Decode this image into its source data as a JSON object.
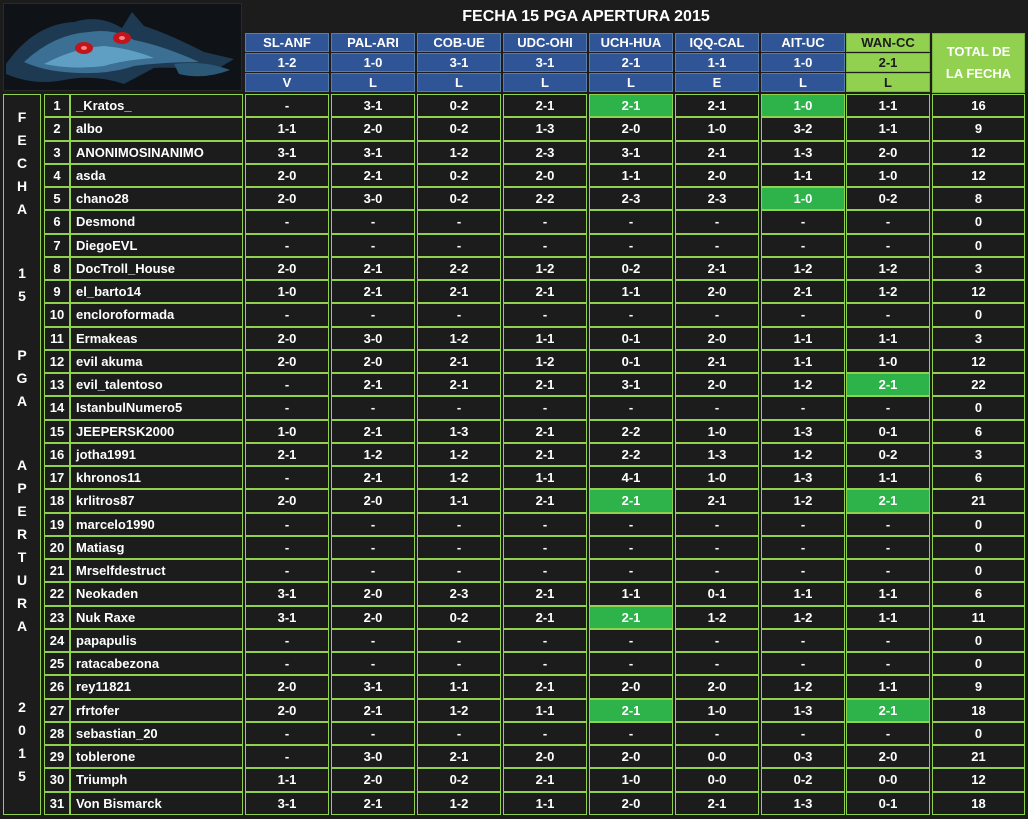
{
  "title": "FECHA 15 PGA APERTURA 2015",
  "total_header": "TOTAL DE LA FECHA",
  "side_label": [
    "F",
    "E",
    "C",
    "H",
    "A",
    "1",
    "5",
    "P",
    "G",
    "A",
    "A",
    "P",
    "E",
    "R",
    "T",
    "U",
    "R",
    "A",
    "2",
    "0",
    "1",
    "5"
  ],
  "colors": {
    "background": "#1c1c1c",
    "grid": "#92d050",
    "header_blue": "#2f5597",
    "header_green": "#92d050",
    "hit": "#2eb24a",
    "text": "#ffffff"
  },
  "matches": [
    {
      "teams": "SL-ANF",
      "score": "1-2",
      "result": "V",
      "highlight": false
    },
    {
      "teams": "PAL-ARI",
      "score": "1-0",
      "result": "L",
      "highlight": false
    },
    {
      "teams": "COB-UE",
      "score": "3-1",
      "result": "L",
      "highlight": false
    },
    {
      "teams": "UDC-OHI",
      "score": "3-1",
      "result": "L",
      "highlight": false
    },
    {
      "teams": "UCH-HUA",
      "score": "2-1",
      "result": "L",
      "highlight": false
    },
    {
      "teams": "IQQ-CAL",
      "score": "1-1",
      "result": "E",
      "highlight": false
    },
    {
      "teams": "AIT-UC",
      "score": "1-0",
      "result": "L",
      "highlight": false
    },
    {
      "teams": "WAN-CC",
      "score": "2-1",
      "result": "L",
      "highlight": true
    }
  ],
  "rows": [
    {
      "num": "1",
      "name": "_Kratos_",
      "picks": [
        "-",
        "3-1",
        "0-2",
        "2-1",
        "2-1",
        "2-1",
        "1-0",
        "1-1"
      ],
      "hits": [
        4,
        6
      ],
      "total": "16"
    },
    {
      "num": "2",
      "name": "albo",
      "picks": [
        "1-1",
        "2-0",
        "0-2",
        "1-3",
        "2-0",
        "1-0",
        "3-2",
        "1-1"
      ],
      "hits": [],
      "total": "9"
    },
    {
      "num": "3",
      "name": "ANONIMOSINANIMO",
      "picks": [
        "3-1",
        "3-1",
        "1-2",
        "2-3",
        "3-1",
        "2-1",
        "1-3",
        "2-0"
      ],
      "hits": [],
      "total": "12"
    },
    {
      "num": "4",
      "name": "asda",
      "picks": [
        "2-0",
        "2-1",
        "0-2",
        "2-0",
        "1-1",
        "2-0",
        "1-1",
        "1-0"
      ],
      "hits": [],
      "total": "12"
    },
    {
      "num": "5",
      "name": "chano28",
      "picks": [
        "2-0",
        "3-0",
        "0-2",
        "2-2",
        "2-3",
        "2-3",
        "1-0",
        "0-2"
      ],
      "hits": [
        6
      ],
      "total": "8"
    },
    {
      "num": "6",
      "name": "Desmond",
      "picks": [
        "-",
        "-",
        "-",
        "-",
        "-",
        "-",
        "-",
        "-"
      ],
      "hits": [],
      "total": "0"
    },
    {
      "num": "7",
      "name": "DiegoEVL",
      "picks": [
        "-",
        "-",
        "-",
        "-",
        "-",
        "-",
        "-",
        "-"
      ],
      "hits": [],
      "total": "0"
    },
    {
      "num": "8",
      "name": "DocTroll_House",
      "picks": [
        "2-0",
        "2-1",
        "2-2",
        "1-2",
        "0-2",
        "2-1",
        "1-2",
        "1-2"
      ],
      "hits": [],
      "total": "3"
    },
    {
      "num": "9",
      "name": "el_barto14",
      "picks": [
        "1-0",
        "2-1",
        "2-1",
        "2-1",
        "1-1",
        "2-0",
        "2-1",
        "1-2"
      ],
      "hits": [],
      "total": "12"
    },
    {
      "num": "10",
      "name": "encloroformada",
      "picks": [
        "-",
        "-",
        "-",
        "-",
        "-",
        "-",
        "-",
        "-"
      ],
      "hits": [],
      "total": "0"
    },
    {
      "num": "11",
      "name": "Ermakeas",
      "picks": [
        "2-0",
        "3-0",
        "1-2",
        "1-1",
        "0-1",
        "2-0",
        "1-1",
        "1-1"
      ],
      "hits": [],
      "total": "3"
    },
    {
      "num": "12",
      "name": "evil akuma",
      "picks": [
        "2-0",
        "2-0",
        "2-1",
        "1-2",
        "0-1",
        "2-1",
        "1-1",
        "1-0"
      ],
      "hits": [],
      "total": "12"
    },
    {
      "num": "13",
      "name": "evil_talentoso",
      "picks": [
        "-",
        "2-1",
        "2-1",
        "2-1",
        "3-1",
        "2-0",
        "1-2",
        "2-1"
      ],
      "hits": [
        7
      ],
      "total": "22"
    },
    {
      "num": "14",
      "name": "IstanbulNumero5",
      "picks": [
        "-",
        "-",
        "-",
        "-",
        "-",
        "-",
        "-",
        "-"
      ],
      "hits": [],
      "total": "0"
    },
    {
      "num": "15",
      "name": "JEEPERSK2000",
      "picks": [
        "1-0",
        "2-1",
        "1-3",
        "2-1",
        "2-2",
        "1-0",
        "1-3",
        "0-1"
      ],
      "hits": [],
      "total": "6"
    },
    {
      "num": "16",
      "name": "jotha1991",
      "picks": [
        "2-1",
        "1-2",
        "1-2",
        "2-1",
        "2-2",
        "1-3",
        "1-2",
        "0-2"
      ],
      "hits": [],
      "total": "3"
    },
    {
      "num": "17",
      "name": "khronos11",
      "picks": [
        "-",
        "2-1",
        "1-2",
        "1-1",
        "4-1",
        "1-0",
        "1-3",
        "1-1"
      ],
      "hits": [],
      "total": "6"
    },
    {
      "num": "18",
      "name": "krlitros87",
      "picks": [
        "2-0",
        "2-0",
        "1-1",
        "2-1",
        "2-1",
        "2-1",
        "1-2",
        "2-1"
      ],
      "hits": [
        4,
        7
      ],
      "total": "21"
    },
    {
      "num": "19",
      "name": "marcelo1990",
      "picks": [
        "-",
        "-",
        "-",
        "-",
        "-",
        "-",
        "-",
        "-"
      ],
      "hits": [],
      "total": "0"
    },
    {
      "num": "20",
      "name": "Matiasg",
      "picks": [
        "-",
        "-",
        "-",
        "-",
        "-",
        "-",
        "-",
        "-"
      ],
      "hits": [],
      "total": "0"
    },
    {
      "num": "21",
      "name": "Mrselfdestruct",
      "picks": [
        "-",
        "-",
        "-",
        "-",
        "-",
        "-",
        "-",
        "-"
      ],
      "hits": [],
      "total": "0"
    },
    {
      "num": "22",
      "name": "Neokaden",
      "picks": [
        "3-1",
        "2-0",
        "2-3",
        "2-1",
        "1-1",
        "0-1",
        "1-1",
        "1-1"
      ],
      "hits": [],
      "total": "6"
    },
    {
      "num": "23",
      "name": "Nuk Raxe",
      "picks": [
        "3-1",
        "2-0",
        "0-2",
        "2-1",
        "2-1",
        "1-2",
        "1-2",
        "1-1"
      ],
      "hits": [
        4
      ],
      "total": "11"
    },
    {
      "num": "24",
      "name": "papapulis",
      "picks": [
        "-",
        "-",
        "-",
        "-",
        "-",
        "-",
        "-",
        "-"
      ],
      "hits": [],
      "total": "0"
    },
    {
      "num": "25",
      "name": "ratacabezona",
      "picks": [
        "-",
        "-",
        "-",
        "-",
        "-",
        "-",
        "-",
        "-"
      ],
      "hits": [],
      "total": "0"
    },
    {
      "num": "26",
      "name": "rey11821",
      "picks": [
        "2-0",
        "3-1",
        "1-1",
        "2-1",
        "2-0",
        "2-0",
        "1-2",
        "1-1"
      ],
      "hits": [],
      "total": "9"
    },
    {
      "num": "27",
      "name": "rfrtofer",
      "picks": [
        "2-0",
        "2-1",
        "1-2",
        "1-1",
        "2-1",
        "1-0",
        "1-3",
        "2-1"
      ],
      "hits": [
        4,
        7
      ],
      "total": "18"
    },
    {
      "num": "28",
      "name": "sebastian_20",
      "picks": [
        "-",
        "-",
        "-",
        "-",
        "-",
        "-",
        "-",
        "-"
      ],
      "hits": [],
      "total": "0"
    },
    {
      "num": "29",
      "name": "toblerone",
      "picks": [
        "-",
        "3-0",
        "2-1",
        "2-0",
        "2-0",
        "0-0",
        "0-3",
        "2-0"
      ],
      "hits": [],
      "total": "21"
    },
    {
      "num": "30",
      "name": "Triumph",
      "picks": [
        "1-1",
        "2-0",
        "0-2",
        "2-1",
        "1-0",
        "0-0",
        "0-2",
        "0-0"
      ],
      "hits": [],
      "total": "12"
    },
    {
      "num": "31",
      "name": "Von Bismarck",
      "picks": [
        "3-1",
        "2-1",
        "1-2",
        "1-1",
        "2-0",
        "2-1",
        "1-3",
        "0-1"
      ],
      "hits": [],
      "total": "18"
    }
  ]
}
